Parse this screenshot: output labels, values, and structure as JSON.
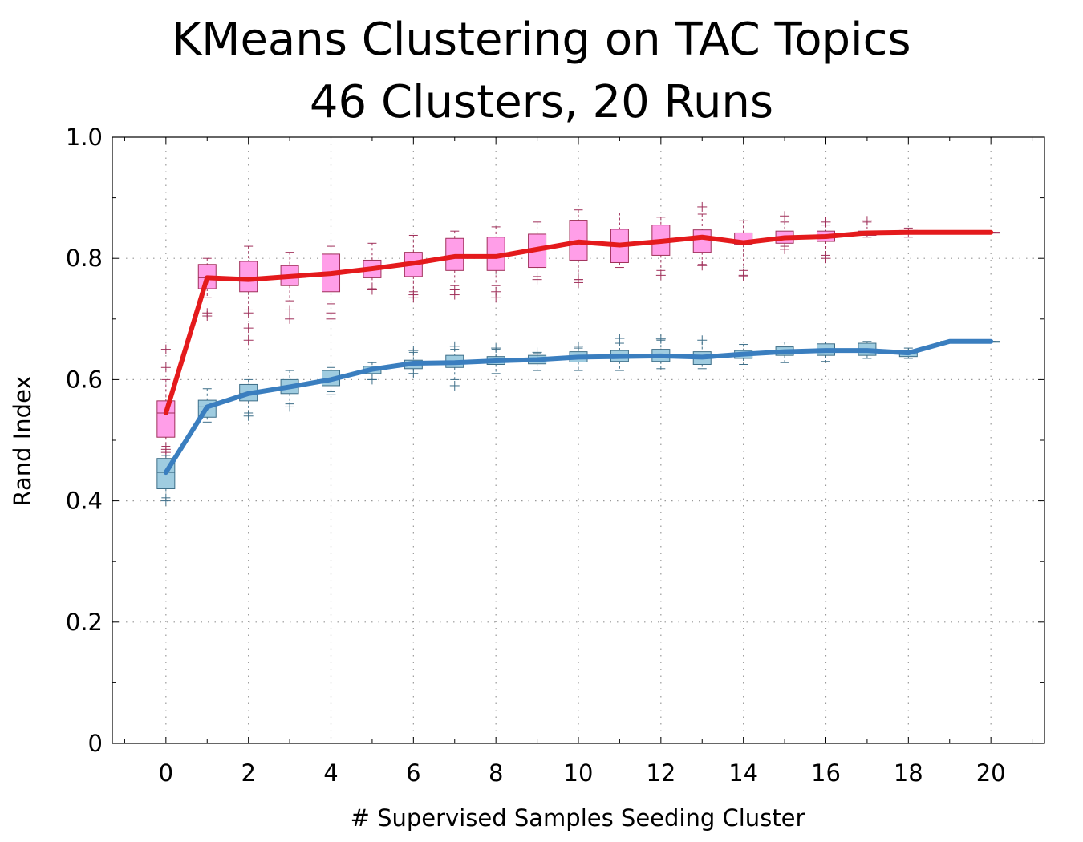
{
  "chart_data": {
    "type": "box",
    "title": "KMeans Clustering on TAC Topics",
    "subtitle": "46 Clusters, 20 Runs",
    "xlabel": "# Supervised Samples Seeding Cluster",
    "ylabel": "Rand Index",
    "xlim": [
      -1.3,
      21.3
    ],
    "ylim": [
      0,
      1.0
    ],
    "xticks": [
      0,
      2,
      4,
      6,
      8,
      10,
      12,
      14,
      16,
      18,
      20
    ],
    "yticks": [
      0,
      0.2,
      0.4,
      0.6,
      0.8,
      1.0
    ],
    "ytick_labels": [
      "0",
      "0.2",
      "0.4",
      "0.6",
      "0.8",
      "1.0"
    ],
    "grid": true,
    "x": [
      0,
      1,
      2,
      3,
      4,
      5,
      6,
      7,
      8,
      9,
      10,
      11,
      12,
      13,
      14,
      15,
      16,
      17,
      18,
      19,
      20
    ],
    "series": [
      {
        "color": "#e41a1c",
        "box_fill": "#ff9ee8",
        "box_stroke": "#a0305a",
        "median": [
          0.545,
          0.768,
          0.765,
          0.77,
          0.775,
          0.783,
          0.792,
          0.803,
          0.803,
          0.815,
          0.827,
          0.822,
          0.828,
          0.835,
          0.826,
          0.834,
          0.836,
          0.842,
          0.843,
          0.843,
          0.843
        ],
        "q1": [
          0.505,
          0.75,
          0.745,
          0.755,
          0.745,
          0.768,
          0.77,
          0.78,
          0.78,
          0.785,
          0.797,
          0.793,
          0.805,
          0.81,
          0.823,
          0.825,
          0.828,
          0.838,
          0.84,
          0.843,
          0.843
        ],
        "q3": [
          0.565,
          0.79,
          0.795,
          0.788,
          0.807,
          0.797,
          0.81,
          0.833,
          0.835,
          0.84,
          0.863,
          0.848,
          0.855,
          0.847,
          0.842,
          0.845,
          0.845,
          0.845,
          0.846,
          0.843,
          0.843
        ],
        "whisker_low": [
          0.49,
          0.735,
          0.715,
          0.73,
          0.725,
          0.75,
          0.745,
          0.755,
          0.755,
          0.77,
          0.765,
          0.785,
          0.78,
          0.79,
          0.78,
          0.82,
          0.805,
          0.835,
          0.835,
          0.843,
          0.843
        ],
        "whisker_high": [
          0.6,
          0.8,
          0.82,
          0.81,
          0.82,
          0.825,
          0.838,
          0.845,
          0.852,
          0.86,
          0.88,
          0.875,
          0.868,
          0.873,
          0.862,
          0.86,
          0.855,
          0.86,
          0.85,
          0.843,
          0.843
        ],
        "outliers": [
          [
            0.65,
            0.62,
            0.48,
            0.485
          ],
          [
            0.705,
            0.71
          ],
          [
            0.685,
            0.665,
            0.71
          ],
          [
            0.7,
            0.715
          ],
          [
            0.7,
            0.71
          ],
          [
            0.748
          ],
          [
            0.735,
            0.74
          ],
          [
            0.74,
            0.748
          ],
          [
            0.735,
            0.745
          ],
          [
            0.765
          ],
          [
            0.76,
            0.765
          ],
          [],
          [
            0.772
          ],
          [
            0.885,
            0.788
          ],
          [
            0.772,
            0.77
          ],
          [
            0.87,
            0.815
          ],
          [
            0.8,
            0.86
          ],
          [
            0.862
          ],
          [],
          [],
          []
        ]
      },
      {
        "color": "#3a7ebf",
        "box_fill": "#9fcce0",
        "box_stroke": "#3d6e88",
        "median": [
          0.447,
          0.555,
          0.577,
          0.588,
          0.6,
          0.617,
          0.627,
          0.628,
          0.631,
          0.633,
          0.637,
          0.638,
          0.639,
          0.637,
          0.642,
          0.646,
          0.648,
          0.648,
          0.644,
          0.663,
          0.663
        ],
        "q1": [
          0.42,
          0.538,
          0.565,
          0.577,
          0.59,
          0.61,
          0.618,
          0.62,
          0.625,
          0.626,
          0.629,
          0.63,
          0.63,
          0.625,
          0.635,
          0.64,
          0.64,
          0.64,
          0.638,
          0.663,
          0.663
        ],
        "q3": [
          0.47,
          0.566,
          0.592,
          0.6,
          0.615,
          0.622,
          0.632,
          0.64,
          0.638,
          0.64,
          0.646,
          0.648,
          0.65,
          0.646,
          0.648,
          0.654,
          0.659,
          0.66,
          0.648,
          0.663,
          0.663
        ],
        "whisker_low": [
          0.405,
          0.53,
          0.545,
          0.56,
          0.58,
          0.6,
          0.61,
          0.6,
          0.61,
          0.615,
          0.615,
          0.615,
          0.618,
          0.618,
          0.625,
          0.628,
          0.63,
          0.635,
          0.635,
          0.663,
          0.663
        ],
        "whisker_high": [
          0.475,
          0.585,
          0.6,
          0.615,
          0.62,
          0.628,
          0.645,
          0.65,
          0.65,
          0.643,
          0.652,
          0.66,
          0.665,
          0.662,
          0.658,
          0.662,
          0.662,
          0.663,
          0.652,
          0.663,
          0.663
        ],
        "outliers": [
          [
            0.4
          ],
          [],
          [
            0.54
          ],
          [
            0.555
          ],
          [
            0.575
          ],
          [
            0.6
          ],
          [
            0.61,
            0.648
          ],
          [
            0.59,
            0.655
          ],
          [
            0.652
          ],
          [
            0.645
          ],
          [
            0.655
          ],
          [
            0.668
          ],
          [
            0.667
          ],
          [
            0.665
          ],
          [],
          [],
          [],
          [],
          [],
          [],
          []
        ]
      }
    ]
  }
}
